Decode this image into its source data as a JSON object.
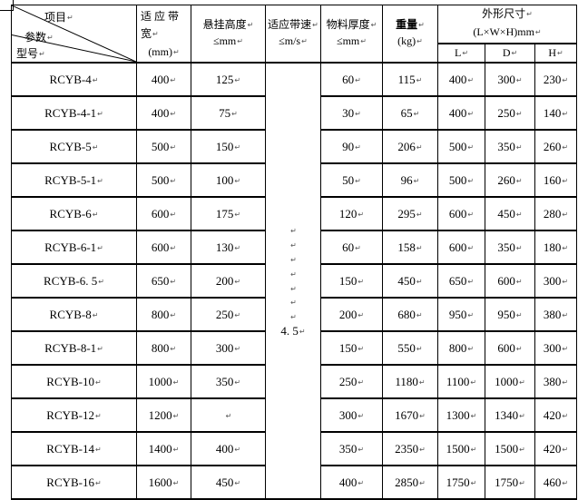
{
  "paragraph_mark": "↵",
  "colors": {
    "border": "#000000",
    "text": "#000000",
    "mark": "#555555",
    "background": "#ffffff"
  },
  "table": {
    "diagonal_header": {
      "item": "项目",
      "param": "参数",
      "model": "型号"
    },
    "columns": {
      "bandwidth": {
        "line1": "适 应 带",
        "line2": "宽",
        "line3": "(mm)"
      },
      "hang_height": {
        "line1": "悬挂高度",
        "line2": "≤mm"
      },
      "belt_speed": {
        "line1": "适应带速",
        "line2": "≤m/s"
      },
      "material_thickness": {
        "line1": "物料厚度",
        "line2": "≤mm"
      },
      "weight": {
        "line1": "重量",
        "line2": "(kg)"
      },
      "dimensions": {
        "line1": "外形尺寸",
        "line2": "(L×W×H)mm",
        "sub_columns": [
          "L",
          "D",
          "H"
        ]
      }
    },
    "belt_speed_cell": {
      "blank_line_count": 7,
      "value": "4. 5"
    },
    "rows": [
      {
        "model": "RCYB-4",
        "bandwidth": "400",
        "hang_height": "125",
        "thickness": "60",
        "weight": "115",
        "l": "400",
        "d": "300",
        "h": "230"
      },
      {
        "model": "RCYB-4-1",
        "bandwidth": "400",
        "hang_height": "75",
        "thickness": "30",
        "weight": "65",
        "l": "400",
        "d": "250",
        "h": "140"
      },
      {
        "model": "RCYB-5",
        "bandwidth": "500",
        "hang_height": "150",
        "thickness": "90",
        "weight": "206",
        "l": "500",
        "d": "350",
        "h": "260"
      },
      {
        "model": "RCYB-5-1",
        "bandwidth": "500",
        "hang_height": "100",
        "thickness": "50",
        "weight": "96",
        "l": "500",
        "d": "260",
        "h": "160"
      },
      {
        "model": "RCYB-6",
        "bandwidth": "600",
        "hang_height": "175",
        "thickness": "120",
        "weight": "295",
        "l": "600",
        "d": "450",
        "h": "280"
      },
      {
        "model": "RCYB-6-1",
        "bandwidth": "600",
        "hang_height": "130",
        "thickness": "60",
        "weight": "158",
        "l": "600",
        "d": "350",
        "h": "180"
      },
      {
        "model": "RCYB-6. 5",
        "bandwidth": "650",
        "hang_height": "200",
        "thickness": "150",
        "weight": "450",
        "l": "650",
        "d": "600",
        "h": "300"
      },
      {
        "model": "RCYB-8",
        "bandwidth": "800",
        "hang_height": "250",
        "thickness": "200",
        "weight": "680",
        "l": "950",
        "d": "950",
        "h": "380"
      },
      {
        "model": "RCYB-8-1",
        "bandwidth": "800",
        "hang_height": "300",
        "thickness": "150",
        "weight": "550",
        "l": "800",
        "d": "600",
        "h": "300"
      },
      {
        "model": "RCYB-10",
        "bandwidth": "1000",
        "hang_height": "350",
        "thickness": "250",
        "weight": "1180",
        "l": "1100",
        "d": "1000",
        "h": "380"
      },
      {
        "model": "RCYB-12",
        "bandwidth": "1200",
        "hang_height": "",
        "thickness": "300",
        "weight": "1670",
        "l": "1300",
        "d": "1340",
        "h": "420"
      },
      {
        "model": "RCYB-14",
        "bandwidth": "1400",
        "hang_height": "400",
        "thickness": "350",
        "weight": "2350",
        "l": "1500",
        "d": "1500",
        "h": "420"
      },
      {
        "model": "RCYB-16",
        "bandwidth": "1600",
        "hang_height": "450",
        "thickness": "400",
        "weight": "2850",
        "l": "1750",
        "d": "1750",
        "h": "460"
      }
    ]
  }
}
